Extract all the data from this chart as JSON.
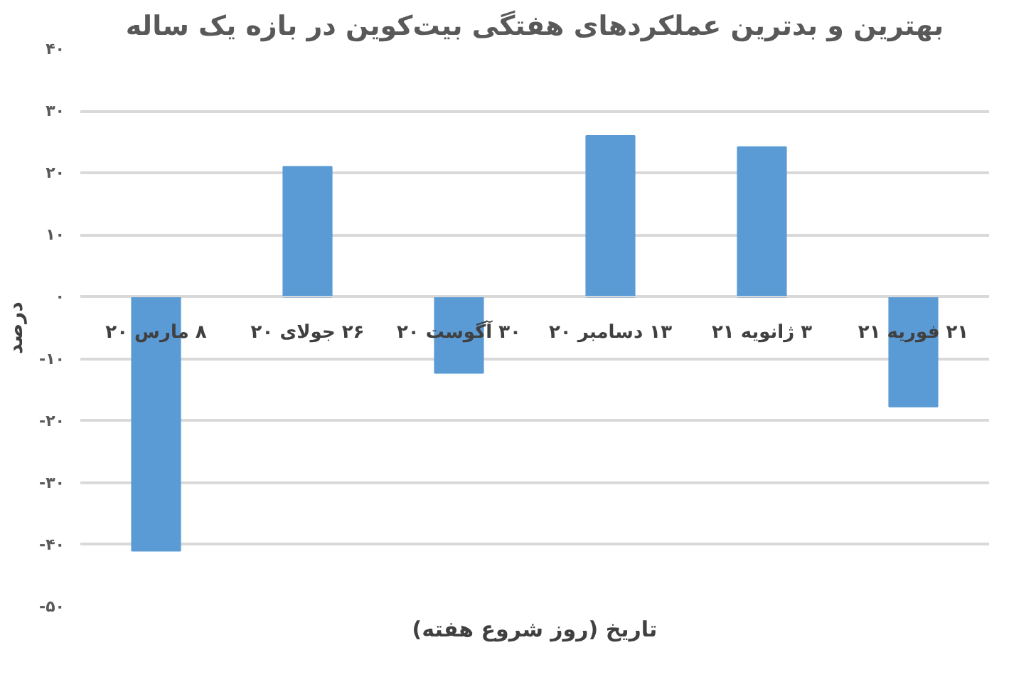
{
  "chart_data": {
    "type": "bar",
    "title": "بهترین و بدترین عملکردهای هفتگی بیت‌کوین در بازه یک ساله",
    "xlabel": "تاریخ (روز شروع هفته)",
    "ylabel": "درصد",
    "categories": [
      "۸ مارس ۲۰",
      "۲۶ جولای ۲۰",
      "۳۰ آگوست ۲۰",
      "۱۳ دسامبر ۲۰",
      "۳ ژانویه ۲۱",
      "۲۱ فوریه ۲۱"
    ],
    "values": [
      -41,
      21,
      -12.3,
      26,
      24.2,
      -17.7
    ],
    "color": "#5b9bd5",
    "ylim": [
      -50,
      40
    ],
    "yticks": [
      {
        "value": 40,
        "label": "۴۰"
      },
      {
        "value": 30,
        "label": "۳۰"
      },
      {
        "value": 20,
        "label": "۲۰"
      },
      {
        "value": 10,
        "label": "۱۰"
      },
      {
        "value": 0,
        "label": "۰"
      },
      {
        "value": -10,
        "label": "-۱۰"
      },
      {
        "value": -20,
        "label": "-۲۰"
      },
      {
        "value": -30,
        "label": "-۳۰"
      },
      {
        "value": -40,
        "label": "-۴۰"
      },
      {
        "value": -50,
        "label": "-۵۰"
      }
    ],
    "grid": "y"
  }
}
